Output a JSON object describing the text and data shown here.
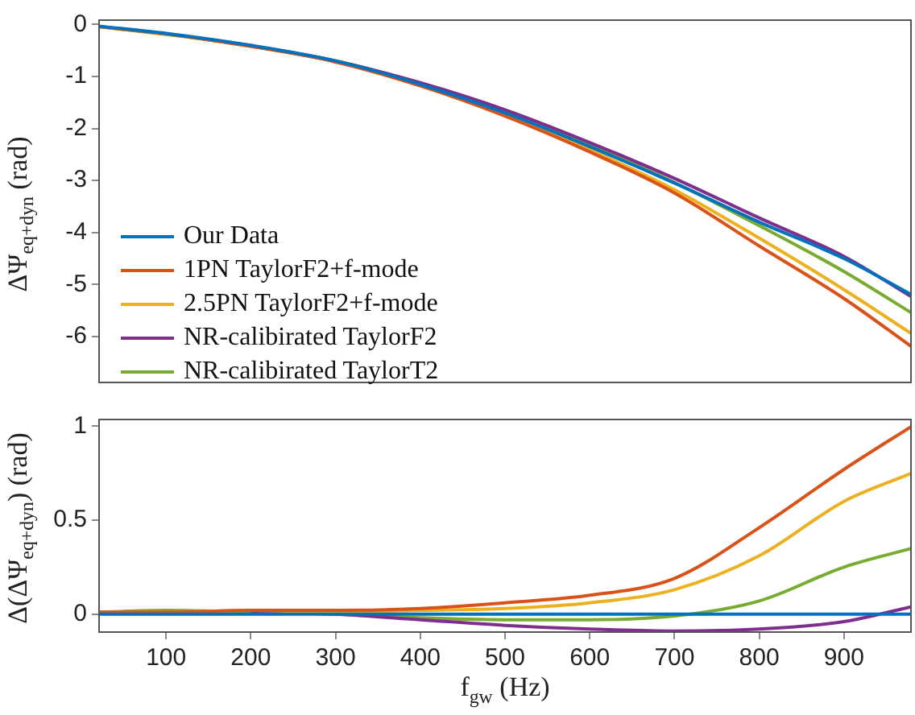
{
  "chart_data": [
    {
      "type": "line",
      "ylabel": "ΔΨ$_{eq+dyn}$ (rad)",
      "x": [
        20,
        100,
        200,
        300,
        400,
        500,
        600,
        700,
        800,
        900,
        980
      ],
      "xlim": [
        20,
        980
      ],
      "xticks": [
        100,
        200,
        300,
        400,
        500,
        600,
        700,
        800,
        900
      ],
      "ylim": [
        -6.9,
        0.1
      ],
      "yticks": [
        -6,
        -5,
        -4,
        -3,
        -2,
        -1,
        0
      ],
      "tick_labels": "y",
      "grid": false,
      "legend": "bottom left",
      "series": [
        {
          "name": "Our Data",
          "color": "#0072bd",
          "values": [
            -0.03,
            -0.17,
            -0.4,
            -0.7,
            -1.15,
            -1.7,
            -2.35,
            -3.05,
            -3.8,
            -4.5,
            -5.2
          ]
        },
        {
          "name": "1PN TaylorF2+f-mode",
          "color": "#d95319",
          "values": [
            -0.04,
            -0.18,
            -0.42,
            -0.72,
            -1.18,
            -1.76,
            -2.45,
            -3.24,
            -4.26,
            -5.27,
            -6.2
          ]
        },
        {
          "name": "2.5PN TaylorF2+f-mode",
          "color": "#edb120",
          "values": [
            -0.04,
            -0.18,
            -0.42,
            -0.71,
            -1.17,
            -1.73,
            -2.41,
            -3.18,
            -4.11,
            -5.1,
            -5.95
          ]
        },
        {
          "name": "NR-calibirated TaylorF2",
          "color": "#7e2f8e",
          "values": [
            null,
            null,
            -0.41,
            -0.7,
            -1.12,
            -1.64,
            -2.27,
            -2.96,
            -3.72,
            -4.46,
            -5.24
          ]
        },
        {
          "name": "NR-calibirated TaylorT2",
          "color": "#77ac30",
          "values": [
            -0.04,
            -0.19,
            -0.41,
            -0.7,
            -1.13,
            -1.67,
            -2.32,
            -3.04,
            -3.87,
            -4.75,
            -5.55
          ]
        }
      ]
    },
    {
      "type": "line",
      "xlabel": "f$_{gw}$ (Hz)",
      "ylabel": "Δ(ΔΨ$_{eq+dyn}$) (rad)",
      "x": [
        20,
        100,
        200,
        300,
        400,
        500,
        600,
        700,
        800,
        900,
        980
      ],
      "xlim": [
        20,
        980
      ],
      "xticks": [
        100,
        200,
        300,
        400,
        500,
        600,
        700,
        800,
        900
      ],
      "ylim": [
        -0.1,
        1.04
      ],
      "yticks": [
        0,
        0.5,
        1
      ],
      "grid": false,
      "legend": false,
      "series": [
        {
          "color": "#0072bd",
          "values": [
            0,
            0,
            0,
            0,
            0,
            0,
            0,
            0,
            0,
            0,
            0
          ]
        },
        {
          "color": "#d95319",
          "values": [
            0.01,
            0.01,
            0.02,
            0.02,
            0.03,
            0.06,
            0.1,
            0.19,
            0.46,
            0.77,
            1.0
          ]
        },
        {
          "color": "#edb120",
          "values": [
            0.01,
            0.01,
            0.02,
            0.01,
            0.02,
            0.03,
            0.06,
            0.13,
            0.31,
            0.6,
            0.75
          ]
        },
        {
          "color": "#7e2f8e",
          "values": [
            null,
            null,
            0.01,
            0,
            -0.03,
            -0.06,
            -0.08,
            -0.09,
            -0.08,
            -0.04,
            0.04
          ]
        },
        {
          "color": "#77ac30",
          "values": [
            0.01,
            0.02,
            0.01,
            0,
            -0.02,
            -0.03,
            -0.03,
            -0.01,
            0.07,
            0.25,
            0.35
          ]
        }
      ]
    }
  ]
}
